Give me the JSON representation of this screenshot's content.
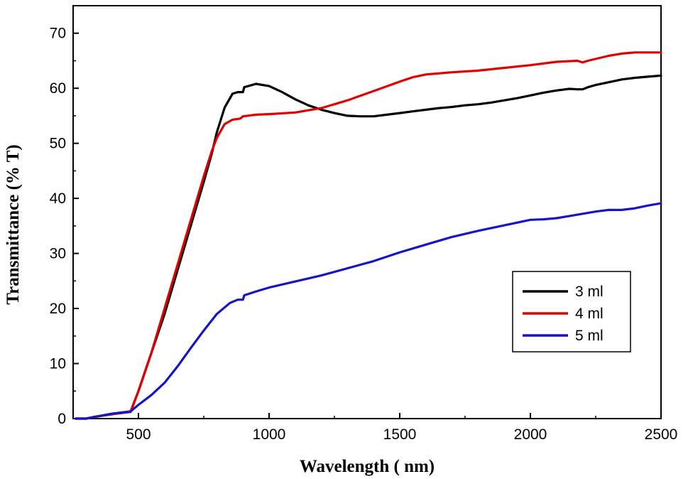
{
  "chart_data": {
    "type": "line",
    "title": "",
    "xlabel": "Wavelength ( nm)",
    "ylabel": "Transmittance (% T)",
    "xlim": [
      250,
      2500
    ],
    "ylim": [
      0,
      75
    ],
    "x_ticks": [
      500,
      1000,
      1500,
      2000,
      2500
    ],
    "y_ticks": [
      0,
      10,
      20,
      30,
      40,
      50,
      60,
      70
    ],
    "grid": false,
    "legend_position": "lower-right",
    "series": [
      {
        "name": "3 ml",
        "color": "#000000",
        "x": [
          260,
          300,
          330,
          400,
          470,
          500,
          550,
          600,
          650,
          700,
          750,
          780,
          800,
          830,
          860,
          880,
          900,
          905,
          950,
          1000,
          1050,
          1100,
          1150,
          1200,
          1250,
          1300,
          1350,
          1400,
          1450,
          1500,
          1550,
          1600,
          1650,
          1700,
          1750,
          1800,
          1850,
          1900,
          1950,
          2000,
          2050,
          2100,
          2150,
          2180,
          2200,
          2220,
          2250,
          2300,
          2350,
          2400,
          2450,
          2500
        ],
        "y": [
          0,
          0,
          0.3,
          0.8,
          1.3,
          5,
          12,
          19,
          27,
          35,
          43,
          48,
          52,
          56.5,
          59,
          59.3,
          59.3,
          60.2,
          60.8,
          60.4,
          59.3,
          58,
          56.9,
          56.1,
          55.5,
          55,
          54.9,
          54.9,
          55.2,
          55.5,
          55.8,
          56.1,
          56.4,
          56.6,
          56.9,
          57.1,
          57.4,
          57.8,
          58.2,
          58.7,
          59.2,
          59.6,
          59.9,
          59.8,
          59.8,
          60.2,
          60.6,
          61.1,
          61.6,
          61.9,
          62.1,
          62.3
        ]
      },
      {
        "name": "4 ml",
        "color": "#e00000",
        "x": [
          260,
          300,
          330,
          400,
          470,
          500,
          550,
          600,
          650,
          700,
          750,
          780,
          800,
          830,
          860,
          890,
          900,
          950,
          1000,
          1100,
          1200,
          1300,
          1400,
          1500,
          1550,
          1600,
          1700,
          1800,
          1900,
          2000,
          2100,
          2180,
          2200,
          2220,
          2300,
          2350,
          2400,
          2450,
          2500
        ],
        "y": [
          0,
          0,
          0.3,
          0.8,
          1.2,
          5,
          12,
          20,
          28,
          36,
          44,
          48.5,
          51,
          53.5,
          54.3,
          54.5,
          54.9,
          55.2,
          55.3,
          55.6,
          56.4,
          57.8,
          59.5,
          61.2,
          62,
          62.5,
          62.9,
          63.2,
          63.7,
          64.2,
          64.8,
          65,
          64.7,
          65,
          65.9,
          66.3,
          66.5,
          66.5,
          66.5
        ]
      },
      {
        "name": "5 ml",
        "color": "#1515c8",
        "x": [
          260,
          300,
          330,
          400,
          470,
          500,
          550,
          600,
          650,
          700,
          750,
          800,
          850,
          880,
          900,
          905,
          950,
          1000,
          1100,
          1200,
          1300,
          1400,
          1500,
          1600,
          1700,
          1800,
          1900,
          2000,
          2050,
          2100,
          2150,
          2200,
          2250,
          2300,
          2350,
          2400,
          2450,
          2500
        ],
        "y": [
          0,
          0,
          0.3,
          0.9,
          1.3,
          2.5,
          4.3,
          6.5,
          9.5,
          12.8,
          16,
          19,
          21,
          21.6,
          21.6,
          22.4,
          23.1,
          23.8,
          24.9,
          26,
          27.3,
          28.6,
          30.2,
          31.6,
          33,
          34.1,
          35.1,
          36.1,
          36.2,
          36.4,
          36.8,
          37.2,
          37.6,
          37.9,
          37.9,
          38.2,
          38.7,
          39.1
        ]
      }
    ]
  }
}
